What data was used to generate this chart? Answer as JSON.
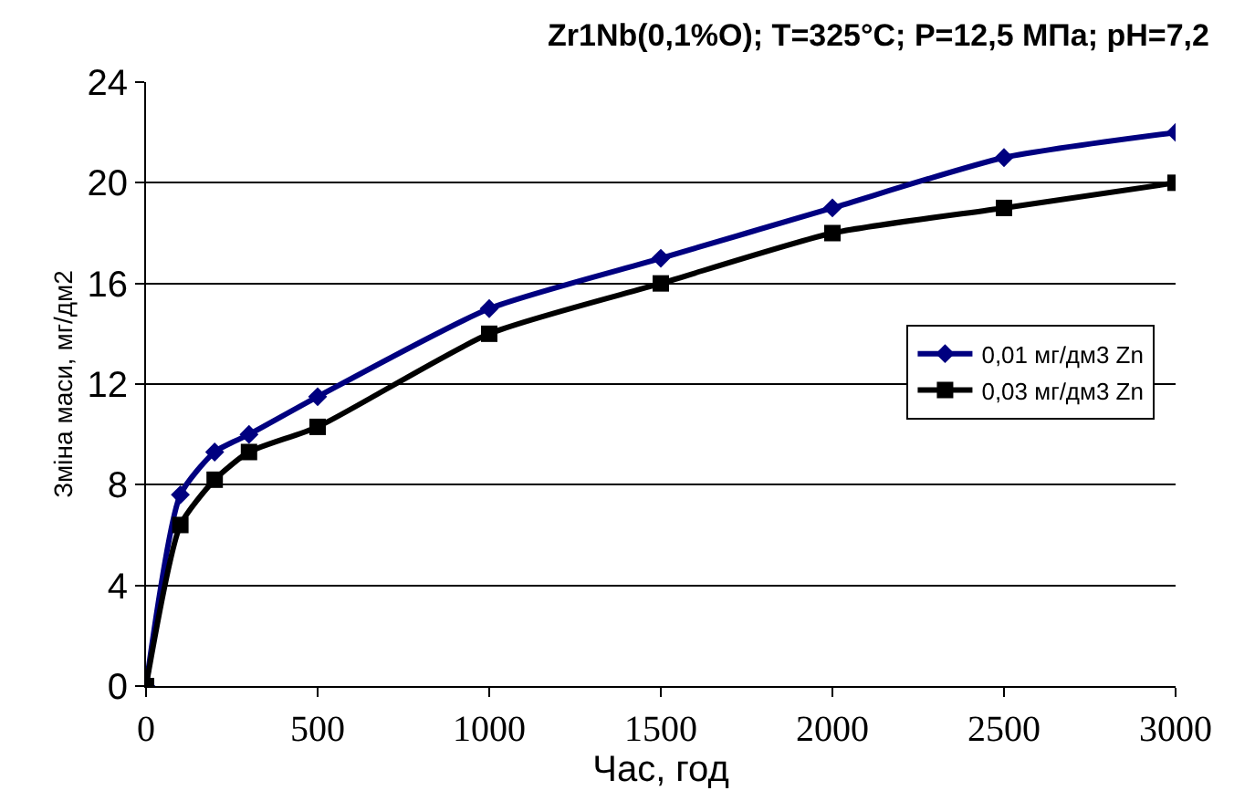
{
  "chart_data": {
    "type": "line",
    "title": "Zr1Nb(0,1%O); T=325°C; P=12,5 МПа; pH=7,2",
    "xlabel": "Час, год",
    "ylabel": "Зміна маси, мг/дм2",
    "x": [
      0,
      100,
      200,
      300,
      500,
      1000,
      1500,
      2000,
      2500,
      3000
    ],
    "series": [
      {
        "name": "0,01 мг/дм3 Zn",
        "color": "#000080",
        "marker": "diamond",
        "values": [
          0,
          7.6,
          9.3,
          10,
          11.5,
          15,
          17,
          19,
          21,
          22
        ]
      },
      {
        "name": "0,03 мг/дм3 Zn",
        "color": "#000000",
        "marker": "square",
        "values": [
          0,
          6.4,
          8.2,
          9.3,
          10.3,
          14,
          16,
          18,
          19,
          20
        ]
      }
    ],
    "xlim": [
      0,
      3000
    ],
    "xticks": [
      0,
      500,
      1000,
      1500,
      2000,
      2500,
      3000
    ],
    "ylim": [
      0,
      24
    ],
    "yticks": [
      0,
      4,
      8,
      12,
      16,
      20,
      24
    ],
    "grid": "y",
    "legend": "right",
    "line_style": "solid"
  }
}
